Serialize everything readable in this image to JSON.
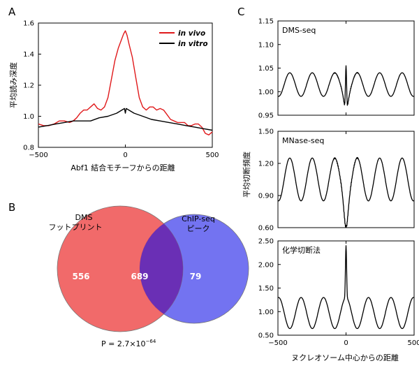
{
  "panels": {
    "a": {
      "letter": "A"
    },
    "b": {
      "letter": "B"
    },
    "c": {
      "letter": "C"
    }
  },
  "chart_data": [
    {
      "id": "A",
      "type": "line",
      "xlabel": "Abf1 結合モチーフからの距離",
      "ylabel": "平均読み深度",
      "xlim": [
        -500,
        500
      ],
      "ylim": [
        0.8,
        1.6
      ],
      "xticks": [
        "−500",
        "0",
        "500"
      ],
      "yticks": [
        "0.8",
        "1.0",
        "1.2",
        "1.4",
        "1.6"
      ],
      "legend_position": "top-right",
      "series": [
        {
          "name": "in vivo",
          "color": "#e0191b",
          "x": [
            -500,
            -470,
            -440,
            -410,
            -380,
            -350,
            -320,
            -300,
            -280,
            -260,
            -240,
            -220,
            -200,
            -180,
            -160,
            -140,
            -120,
            -100,
            -80,
            -60,
            -40,
            -20,
            -10,
            0,
            10,
            20,
            40,
            60,
            80,
            100,
            120,
            140,
            160,
            180,
            200,
            220,
            240,
            260,
            280,
            300,
            320,
            340,
            360,
            380,
            400,
            420,
            440,
            460,
            480,
            500
          ],
          "y": [
            0.95,
            0.94,
            0.94,
            0.95,
            0.97,
            0.97,
            0.96,
            0.97,
            0.99,
            1.02,
            1.04,
            1.04,
            1.06,
            1.08,
            1.05,
            1.04,
            1.06,
            1.12,
            1.24,
            1.36,
            1.44,
            1.5,
            1.53,
            1.55,
            1.52,
            1.47,
            1.38,
            1.25,
            1.12,
            1.06,
            1.04,
            1.06,
            1.06,
            1.04,
            1.05,
            1.04,
            1.01,
            0.98,
            0.97,
            0.96,
            0.96,
            0.96,
            0.94,
            0.94,
            0.95,
            0.95,
            0.93,
            0.89,
            0.88,
            0.9
          ]
        },
        {
          "name": "in vitro",
          "color": "#000000",
          "x": [
            -500,
            -450,
            -400,
            -350,
            -300,
            -250,
            -200,
            -150,
            -100,
            -50,
            -20,
            -5,
            0,
            5,
            20,
            50,
            100,
            150,
            200,
            250,
            300,
            350,
            400,
            450,
            500
          ],
          "y": [
            0.93,
            0.94,
            0.95,
            0.96,
            0.97,
            0.97,
            0.97,
            0.99,
            1.0,
            1.02,
            1.04,
            1.05,
            1.02,
            1.05,
            1.04,
            1.02,
            1.0,
            0.98,
            0.97,
            0.96,
            0.95,
            0.94,
            0.93,
            0.92,
            0.91
          ]
        }
      ]
    },
    {
      "id": "B",
      "type": "venn",
      "sets": [
        {
          "label_line1": "DMS",
          "label_line2": "フットプリント",
          "only": "556",
          "color": "#ef5a5a"
        },
        {
          "label_line1": "ChIP-seq",
          "label_line2": "ピーク",
          "only": "79",
          "color": "#5b5bee"
        }
      ],
      "overlap": "689",
      "overlap_color": "#6a2fb5",
      "pvalue": "P = 2.7×10",
      "pvalue_exp": "−64"
    },
    {
      "id": "C",
      "type": "line",
      "shared_ylabel": "平均切断頻度",
      "shared_xlabel": "ヌクレオソーム中心からの距離",
      "xlim": [
        -500,
        500
      ],
      "xticks": [
        "−500",
        "0",
        "500"
      ],
      "subplots": [
        {
          "title": "DMS-seq",
          "ylim": [
            0.95,
            1.15
          ],
          "yticks": [
            "0.95",
            "1.00",
            "1.05",
            "1.10",
            "1.15"
          ],
          "base": 1.015,
          "amp": 0.025,
          "period": 165,
          "phase": 82,
          "spike": 0.095,
          "dip": -0.03
        },
        {
          "title": "MNase-seq",
          "ylim": [
            0.6,
            1.5
          ],
          "yticks": [
            "0.60",
            "0.90",
            "1.20",
            "1.50"
          ],
          "base": 1.05,
          "amp": 0.2,
          "period": 165,
          "phase": 82,
          "spike": 0.0,
          "dip": -0.25
        },
        {
          "title": "化学切断法",
          "ylim": [
            0.5,
            2.5
          ],
          "yticks": [
            "0.50",
            "1.00",
            "1.50",
            "2.00",
            "2.50"
          ],
          "base": 0.97,
          "amp": 0.33,
          "period": 165,
          "phase": 0,
          "spike": 1.1,
          "dip": 0.0
        }
      ]
    }
  ]
}
